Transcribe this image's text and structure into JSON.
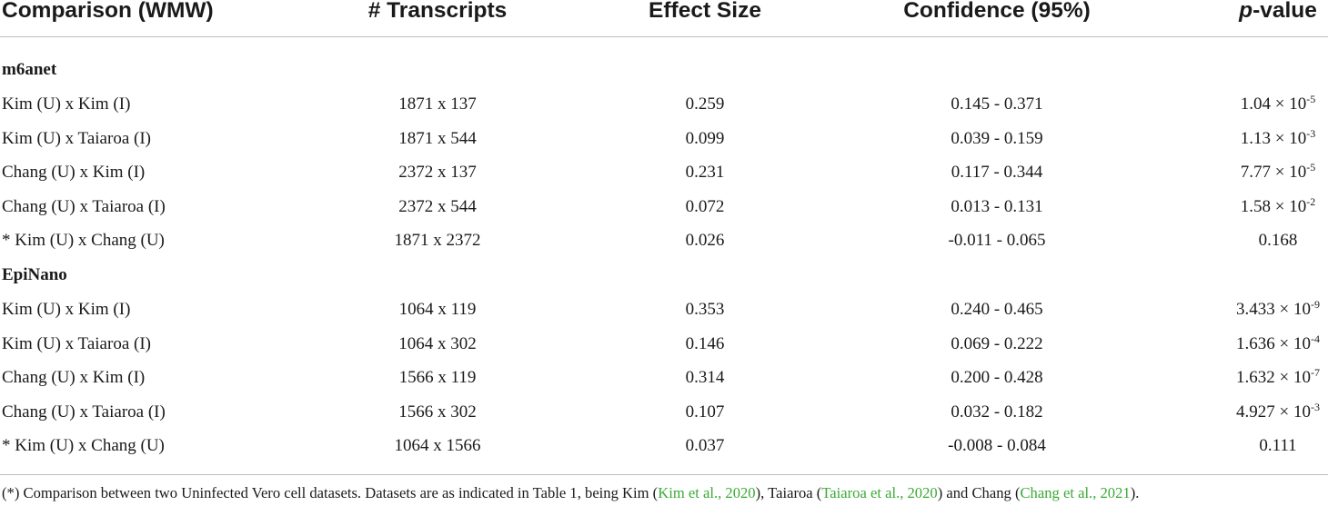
{
  "header": {
    "comparison": "Comparison (WMW)",
    "transcripts": "# Transcripts",
    "effect_size": "Effect Size",
    "confidence": "Confidence (95%)",
    "pvalue_italic": "p",
    "pvalue_rest": "-value"
  },
  "sections": [
    {
      "title": "m6anet",
      "rows": [
        {
          "comparison": "Kim (U) x Kim (I)",
          "transcripts": "1871 x 137",
          "effect": "0.259",
          "ci": "0.145 - 0.371",
          "p_base": "1.04 × 10",
          "p_exp": "-5"
        },
        {
          "comparison": "Kim (U) x Taiaroa (I)",
          "transcripts": "1871 x 544",
          "effect": "0.099",
          "ci": "0.039 - 0.159",
          "p_base": "1.13 × 10",
          "p_exp": "-3"
        },
        {
          "comparison": "Chang (U) x Kim (I)",
          "transcripts": "2372 x 137",
          "effect": "0.231",
          "ci": "0.117 - 0.344",
          "p_base": "7.77 × 10",
          "p_exp": "-5"
        },
        {
          "comparison": "Chang (U) x Taiaroa (I)",
          "transcripts": "2372 x 544",
          "effect": "0.072",
          "ci": "0.013 - 0.131",
          "p_base": "1.58 × 10",
          "p_exp": "-2"
        },
        {
          "comparison": "* Kim (U) x Chang (U)",
          "transcripts": "1871 x 2372",
          "effect": "0.026",
          "ci": "-0.011 - 0.065",
          "p_base": "0.168",
          "p_exp": ""
        }
      ]
    },
    {
      "title": "EpiNano",
      "rows": [
        {
          "comparison": "Kim (U) x Kim (I)",
          "transcripts": "1064 x 119",
          "effect": "0.353",
          "ci": "0.240 - 0.465",
          "p_base": "3.433 × 10",
          "p_exp": "-9"
        },
        {
          "comparison": "Kim (U) x Taiaroa (I)",
          "transcripts": "1064 x 302",
          "effect": "0.146",
          "ci": "0.069 - 0.222",
          "p_base": "1.636 × 10",
          "p_exp": "-4"
        },
        {
          "comparison": "Chang (U) x Kim (I)",
          "transcripts": "1566 x 119",
          "effect": "0.314",
          "ci": "0.200 - 0.428",
          "p_base": "1.632 × 10",
          "p_exp": "-7"
        },
        {
          "comparison": "Chang (U) x Taiaroa (I)",
          "transcripts": "1566 x 302",
          "effect": "0.107",
          "ci": "0.032 - 0.182",
          "p_base": "4.927 × 10",
          "p_exp": "-3"
        },
        {
          "comparison": "* Kim (U) x Chang (U)",
          "transcripts": "1064 x 1566",
          "effect": "0.037",
          "ci": "-0.008 - 0.084",
          "p_base": "0.111",
          "p_exp": ""
        }
      ]
    }
  ],
  "footnote": {
    "t1": "(*) Comparison between two Uninfected Vero cell datasets. Datasets are as indicated in Table 1, being Kim (",
    "ref1": "Kim et al., 2020",
    "t2": "), Taiaroa (",
    "ref2": "Taiaroa et al., 2020",
    "t3": ") and Chang (",
    "ref3": "Chang et al., 2021",
    "t4": ").",
    "link_color": "#3aaa35"
  }
}
